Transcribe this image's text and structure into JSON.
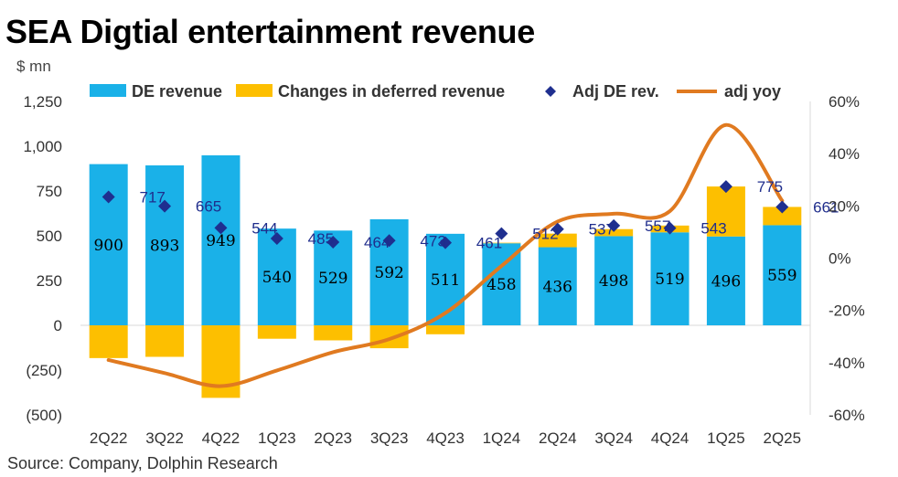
{
  "title": "SEA Digtial entertainment revenue",
  "unit": "$ mn",
  "source": "Source: Company, Dolphin Research",
  "colors": {
    "de_revenue": "#1AB1E8",
    "deferred": "#FDBF00",
    "adj_marker": "#1F2F8F",
    "adj_yoy": "#E07A20"
  },
  "chart_data": {
    "type": "bar",
    "title": "SEA Digtial entertainment revenue",
    "ylabel": "$ mn",
    "categories": [
      "2Q22",
      "3Q22",
      "4Q22",
      "1Q23",
      "2Q23",
      "3Q23",
      "4Q23",
      "1Q24",
      "2Q24",
      "3Q24",
      "4Q24",
      "1Q25",
      "2Q25"
    ],
    "y_ticks": [
      "(500)",
      "(250)",
      "0",
      "250",
      "500",
      "750",
      "1,000",
      "1,250"
    ],
    "y2_ticks": [
      "-60%",
      "-40%",
      "-20%",
      "0%",
      "20%",
      "40%",
      "60%"
    ],
    "ylim": [
      -500,
      1250
    ],
    "y2lim": [
      -0.6,
      0.6
    ],
    "legend_position": "top",
    "series": [
      {
        "name": "DE revenue",
        "kind": "bar",
        "values": [
          900,
          893,
          949,
          540,
          529,
          592,
          511,
          458,
          436,
          498,
          519,
          496,
          559
        ]
      },
      {
        "name": "Changes in deferred revenue",
        "kind": "bar",
        "values": [
          -183,
          -176,
          -405,
          -75,
          -84,
          -128,
          -50,
          3,
          76,
          39,
          38,
          279,
          102
        ]
      },
      {
        "name": "Adj DE rev.",
        "kind": "marker",
        "values": [
          717,
          665,
          544,
          485,
          464,
          473,
          461,
          512,
          537,
          557,
          543,
          775,
          661
        ]
      },
      {
        "name": "adj yoy",
        "kind": "line",
        "axis": "secondary",
        "values": [
          -0.39,
          -0.44,
          -0.49,
          -0.43,
          -0.36,
          -0.31,
          -0.21,
          -0.03,
          0.14,
          0.17,
          0.18,
          0.51,
          0.22
        ]
      }
    ]
  }
}
